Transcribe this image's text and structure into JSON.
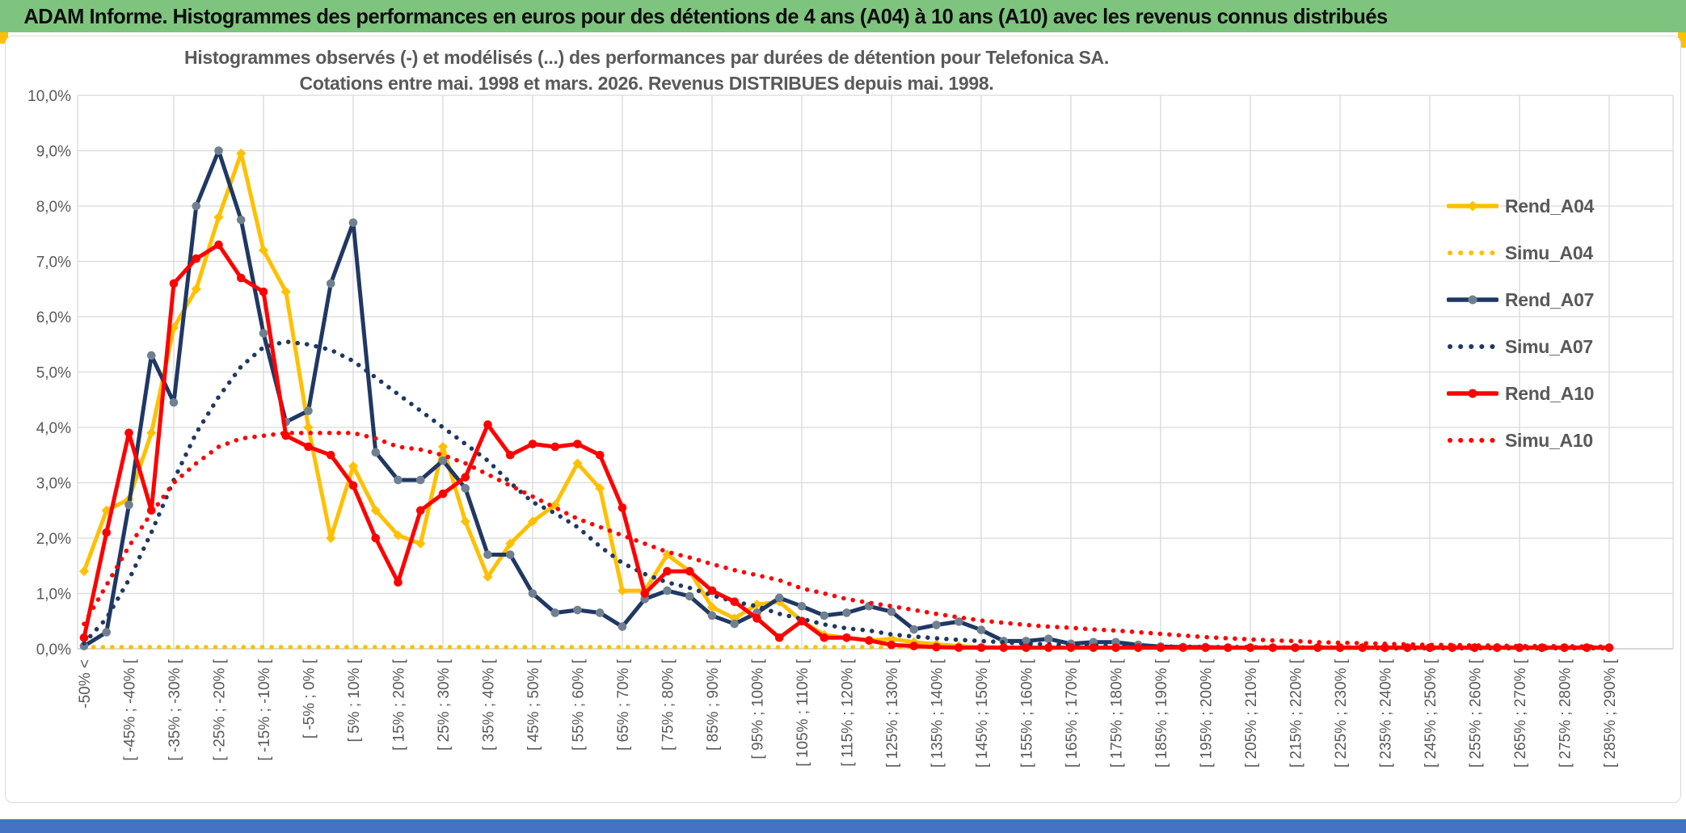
{
  "header": {
    "title": "ADAM Informe. Histogrammes des performances en euros pour des détentions de 4 ans (A04) à 10 ans (A10) avec les revenus connus distribués",
    "background_color": "#7EC47E"
  },
  "footer": {
    "background_color": "#4472C4"
  },
  "accents": {
    "gold": "#FFC000"
  },
  "chart_data": {
    "type": "line",
    "title_line1": "Histogrammes observés (-) et modélisés (...) des performances par durées de détention pour Telefonica SA.",
    "title_line2": "Cotations entre mai. 1998 et mars. 2026. Revenus DISTRIBUES depuis mai. 1998.",
    "grid": true,
    "legend_position": "right",
    "ylim": [
      0,
      10
    ],
    "y_tick_labels": [
      "0,0%",
      "1,0%",
      "2,0%",
      "3,0%",
      "4,0%",
      "5,0%",
      "6,0%",
      "7,0%",
      "8,0%",
      "9,0%",
      "10,0%"
    ],
    "n_bins": 69,
    "x_label_every_n_bins": 2,
    "x_tick_labels": [
      "-50% <",
      "[ -45% ; -40% [",
      "[ -35% ; -30% [",
      "[ -25% ; -20% [",
      "[ -15% ; -10% [",
      "[ -5% ; 0% [",
      "[ 5% ; 10% [",
      "[ 15% ; 20% [",
      "[ 25% ; 30% [",
      "[ 35% ; 40% [",
      "[ 45% ; 50% [",
      "[ 55% ; 60% [",
      "[ 65% ; 70% [",
      "[ 75% ; 80% [",
      "[ 85% ; 90% [",
      "[ 95% ; 100% [",
      "[ 105% ; 110% [",
      "[ 115% ; 120% [",
      "[ 125% ; 130% [",
      "[ 135% ; 140% [",
      "[ 145% ; 150% [",
      "[ 155% ; 160% [",
      "[ 165% ; 170% [",
      "[ 175% ; 180% [",
      "[ 185% ; 190% [",
      "[ 195% ; 200% [",
      "[ 205% ; 210% [",
      "[ 215% ; 220% [",
      "[ 225% ; 230% [",
      "[ 235% ; 240% [",
      "[ 245% ; 250% [",
      "[ 255% ; 260% [",
      "[ 265% ; 270% [",
      "[ 275% ; 280% [",
      "[ 285% ; 290% ["
    ],
    "series": [
      {
        "name": "Rend_A04",
        "style": "solid",
        "marker": "diamond",
        "color": "#FFC000",
        "marker_color": "#FFC000",
        "values": [
          1.4,
          2.5,
          2.7,
          3.9,
          5.8,
          6.5,
          7.8,
          8.95,
          7.2,
          6.45,
          4.0,
          2.0,
          3.3,
          2.5,
          2.05,
          1.9,
          3.65,
          2.3,
          1.3,
          1.9,
          2.3,
          2.6,
          3.35,
          2.9,
          1.05,
          1.05,
          1.7,
          1.4,
          0.75,
          0.55,
          0.8,
          0.85,
          0.5,
          0.25,
          0.2,
          0.15,
          0.18,
          0.12,
          0.08,
          0.05,
          0.03,
          0.02,
          0.02,
          0.02,
          0.02,
          0.02,
          0.02,
          0.02,
          0.02,
          0.02,
          0.02,
          0.02,
          0.02,
          0.02,
          0.02,
          0.02,
          0.02,
          0.02,
          0.02,
          0.02,
          0.02,
          0.02,
          0.02,
          0.02,
          0.02,
          0.02,
          0.02,
          0.02,
          0.02
        ]
      },
      {
        "name": "Simu_A04",
        "style": "dotted",
        "marker": "none",
        "color": "#FFC000",
        "marker_color": "#FFC000",
        "values": [
          0.03,
          0.03,
          0.03,
          0.03,
          0.03,
          0.03,
          0.03,
          0.03,
          0.03,
          0.03,
          0.03,
          0.03,
          0.03,
          0.03,
          0.03,
          0.03,
          0.03,
          0.03,
          0.03,
          0.03,
          0.03,
          0.03,
          0.03,
          0.03,
          0.03,
          0.03,
          0.03,
          0.03,
          0.03,
          0.03,
          0.03,
          0.03,
          0.03,
          0.03,
          0.03,
          0.03,
          0.03,
          0.03,
          0.03,
          0.03,
          0.03,
          0.03,
          0.03,
          0.03,
          0.03,
          0.03,
          0.03,
          0.03,
          0.03,
          0.03,
          0.03,
          0.03,
          0.03,
          0.03,
          0.03,
          0.03,
          0.03,
          0.03,
          0.03,
          0.03,
          0.03,
          0.03,
          0.03,
          0.03,
          0.03,
          0.03,
          0.03,
          0.03,
          0.03
        ]
      },
      {
        "name": "Rend_A07",
        "style": "solid",
        "marker": "circle",
        "color": "#1F3864",
        "marker_color": "#708090",
        "values": [
          0.05,
          0.3,
          2.6,
          5.3,
          4.45,
          8.0,
          9.0,
          7.75,
          5.7,
          4.1,
          4.3,
          6.6,
          7.7,
          3.55,
          3.05,
          3.05,
          3.4,
          2.9,
          1.7,
          1.7,
          1.0,
          0.65,
          0.7,
          0.65,
          0.4,
          0.9,
          1.05,
          0.95,
          0.6,
          0.45,
          0.65,
          0.92,
          0.77,
          0.6,
          0.65,
          0.77,
          0.67,
          0.35,
          0.43,
          0.49,
          0.34,
          0.14,
          0.14,
          0.18,
          0.09,
          0.12,
          0.12,
          0.07,
          0.04,
          0.03,
          0.03,
          0.02,
          0.02,
          0.02,
          0.02,
          0.02,
          0.02,
          0.02,
          0.02,
          0.02,
          0.02,
          0.02,
          0.02,
          0.02,
          0.02,
          0.02,
          0.02,
          0.02,
          0.02
        ]
      },
      {
        "name": "Simu_A07",
        "style": "dotted",
        "marker": "none",
        "color": "#1F3864",
        "marker_color": "#1F3864",
        "values": [
          0.1,
          0.55,
          1.25,
          2.1,
          3.05,
          3.9,
          4.55,
          5.1,
          5.45,
          5.55,
          5.5,
          5.4,
          5.2,
          4.9,
          4.6,
          4.3,
          4.0,
          3.7,
          3.4,
          3.0,
          2.65,
          2.45,
          2.2,
          1.85,
          1.55,
          1.35,
          1.2,
          1.1,
          0.97,
          0.85,
          0.77,
          0.63,
          0.54,
          0.44,
          0.37,
          0.33,
          0.26,
          0.22,
          0.19,
          0.16,
          0.14,
          0.12,
          0.09,
          0.08,
          0.07,
          0.06,
          0.05,
          0.05,
          0.04,
          0.04,
          0.03,
          0.03,
          0.03,
          0.02,
          0.02,
          0.02,
          0.02,
          0.02,
          0.01,
          0.01,
          0.01,
          0.01,
          0.01,
          0.01,
          0.01,
          0.01,
          0.01,
          0.01,
          0.01
        ]
      },
      {
        "name": "Rend_A10",
        "style": "solid",
        "marker": "circle",
        "color": "#FF0000",
        "marker_color": "#FF0000",
        "values": [
          0.2,
          2.1,
          3.9,
          2.5,
          6.6,
          7.05,
          7.3,
          6.7,
          6.45,
          3.85,
          3.65,
          3.5,
          2.95,
          2.0,
          1.2,
          2.5,
          2.8,
          3.1,
          4.05,
          3.5,
          3.7,
          3.65,
          3.7,
          3.5,
          2.55,
          1.0,
          1.4,
          1.4,
          1.05,
          0.85,
          0.55,
          0.2,
          0.5,
          0.2,
          0.2,
          0.15,
          0.07,
          0.05,
          0.03,
          0.02,
          0.02,
          0.02,
          0.02,
          0.02,
          0.02,
          0.02,
          0.02,
          0.02,
          0.02,
          0.02,
          0.02,
          0.02,
          0.02,
          0.02,
          0.02,
          0.02,
          0.02,
          0.02,
          0.02,
          0.02,
          0.02,
          0.02,
          0.02,
          0.02,
          0.02,
          0.02,
          0.02,
          0.02,
          0.02
        ]
      },
      {
        "name": "Simu_A10",
        "style": "dotted",
        "marker": "none",
        "color": "#FF0000",
        "marker_color": "#FF0000",
        "values": [
          0.45,
          1.15,
          1.85,
          2.45,
          3.0,
          3.35,
          3.65,
          3.8,
          3.85,
          3.9,
          3.9,
          3.9,
          3.9,
          3.8,
          3.65,
          3.6,
          3.5,
          3.35,
          3.15,
          2.95,
          2.75,
          2.55,
          2.35,
          2.2,
          2.05,
          1.9,
          1.75,
          1.65,
          1.53,
          1.42,
          1.33,
          1.24,
          1.09,
          1.0,
          0.9,
          0.83,
          0.77,
          0.7,
          0.63,
          0.57,
          0.51,
          0.47,
          0.43,
          0.4,
          0.38,
          0.35,
          0.33,
          0.3,
          0.27,
          0.24,
          0.21,
          0.19,
          0.17,
          0.15,
          0.14,
          0.12,
          0.11,
          0.1,
          0.09,
          0.08,
          0.07,
          0.07,
          0.06,
          0.06,
          0.05,
          0.05,
          0.05,
          0.04,
          0.04
        ]
      }
    ]
  },
  "legend": {
    "items": [
      {
        "label": "Rend_A04"
      },
      {
        "label": "Simu_A04"
      },
      {
        "label": "Rend_A07"
      },
      {
        "label": "Simu_A07"
      },
      {
        "label": "Rend_A10"
      },
      {
        "label": "Simu_A10"
      }
    ]
  }
}
